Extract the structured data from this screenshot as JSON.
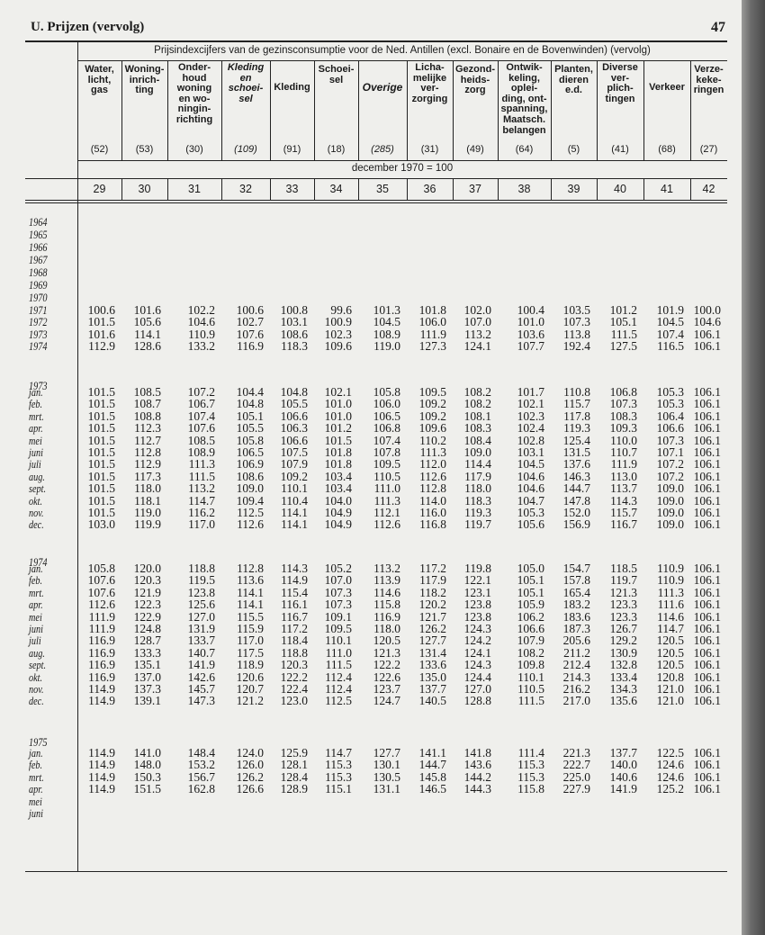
{
  "header": {
    "title": "U. Prijzen (vervolg)",
    "page": "47"
  },
  "table": {
    "caption": "Prijsindexcijfers van de gezinsconsumptie voor de Ned. Antillen (excl. Bonaire en de Bovenwinden) (vervolg)",
    "columns": [
      {
        "label": [
          "Water,",
          "licht,",
          "gas"
        ],
        "weight": "(52)",
        "number": 29
      },
      {
        "label": [
          "Woning-",
          "inrich-",
          "ting"
        ],
        "weight": "(53)",
        "number": 30
      },
      {
        "label": [
          "Onder-",
          "houd",
          "woning",
          "en wo-",
          "ningin-",
          "richting"
        ],
        "weight": "(30)",
        "number": 31
      },
      {
        "label": [
          "Kleding",
          "en",
          "schoei-",
          "sel"
        ],
        "weight": "(109)",
        "number": 32
      },
      {
        "label": [
          "Kleding"
        ],
        "weight": "(91)",
        "number": 33
      },
      {
        "label": [
          "Schoei-",
          "sel"
        ],
        "weight": "(18)",
        "number": 34
      },
      {
        "label": [
          "Overige"
        ],
        "weight": "(285)",
        "number": 35
      },
      {
        "label": [
          "Licha-",
          "melijke",
          "ver-",
          "zorging"
        ],
        "weight": "(31)",
        "number": 36
      },
      {
        "label": [
          "Gezond-",
          "heids-",
          "zorg"
        ],
        "weight": "(49)",
        "number": 37
      },
      {
        "label": [
          "Ontwik-",
          "keling,",
          "oplei-",
          "ding, ont-",
          "spanning,",
          "Maatsch.",
          "belangen"
        ],
        "weight": "(64)",
        "number": 38
      },
      {
        "label": [
          "Planten,",
          "dieren",
          "e.d."
        ],
        "weight": "(5)",
        "number": 39
      },
      {
        "label": [
          "Diverse",
          "ver-",
          "plich-",
          "tingen"
        ],
        "weight": "(41)",
        "number": 40
      },
      {
        "label": [
          "Verkeer"
        ],
        "weight": "(68)",
        "number": 41
      },
      {
        "label": [
          "Verze-",
          "keke-",
          "ringen"
        ],
        "weight": "(27)",
        "number": 42
      }
    ],
    "base": "december 1970 = 100",
    "sections": [
      {
        "rows": [
          {
            "label": "1964"
          },
          {
            "label": "1965"
          },
          {
            "label": "1966"
          },
          {
            "label": "1967"
          },
          {
            "label": "1968"
          },
          {
            "label": "1969"
          },
          {
            "label": "1970"
          },
          {
            "label": "1971",
            "values": [
              "100.6",
              "101.6",
              "102.2",
              "100.6",
              "100.8",
              "99.6",
              "101.3",
              "101.8",
              "102.0",
              "100.4",
              "103.5",
              "101.2",
              "101.9",
              "100.0"
            ]
          },
          {
            "label": "1972",
            "values": [
              "101.5",
              "105.6",
              "104.6",
              "102.7",
              "103.1",
              "100.9",
              "104.5",
              "106.0",
              "107.0",
              "101.0",
              "107.3",
              "105.1",
              "104.5",
              "104.6"
            ]
          },
          {
            "label": "1973",
            "values": [
              "101.6",
              "114.1",
              "110.9",
              "107.6",
              "108.6",
              "102.3",
              "108.9",
              "111.9",
              "113.2",
              "103.6",
              "113.8",
              "111.5",
              "107.4",
              "106.1"
            ]
          },
          {
            "label": "1974",
            "values": [
              "112.9",
              "128.6",
              "133.2",
              "116.9",
              "118.3",
              "109.6",
              "119.0",
              "127.3",
              "124.1",
              "107.7",
              "192.4",
              "127.5",
              "116.5",
              "106.1"
            ]
          }
        ]
      },
      {
        "label": "1973",
        "rows": [
          {
            "label": "jan.",
            "values": [
              "101.5",
              "108.5",
              "107.2",
              "104.4",
              "104.8",
              "102.1",
              "105.8",
              "109.5",
              "108.2",
              "101.7",
              "110.8",
              "106.8",
              "105.3",
              "106.1"
            ]
          },
          {
            "label": "feb.",
            "values": [
              "101.5",
              "108.7",
              "106.7",
              "104.8",
              "105.5",
              "101.0",
              "106.0",
              "109.2",
              "108.2",
              "102.1",
              "115.7",
              "107.3",
              "105.3",
              "106.1"
            ]
          },
          {
            "label": "mrt.",
            "values": [
              "101.5",
              "108.8",
              "107.4",
              "105.1",
              "106.6",
              "101.0",
              "106.5",
              "109.2",
              "108.1",
              "102.3",
              "117.8",
              "108.3",
              "106.4",
              "106.1"
            ]
          },
          {
            "label": "apr.",
            "values": [
              "101.5",
              "112.3",
              "107.6",
              "105.5",
              "106.3",
              "101.2",
              "106.8",
              "109.6",
              "108.3",
              "102.4",
              "119.3",
              "109.3",
              "106.6",
              "106.1"
            ]
          },
          {
            "label": "mei",
            "values": [
              "101.5",
              "112.7",
              "108.5",
              "105.8",
              "106.6",
              "101.5",
              "107.4",
              "110.2",
              "108.4",
              "102.8",
              "125.4",
              "110.0",
              "107.3",
              "106.1"
            ]
          },
          {
            "label": "juni",
            "values": [
              "101.5",
              "112.8",
              "108.9",
              "106.5",
              "107.5",
              "101.8",
              "107.8",
              "111.3",
              "109.0",
              "103.1",
              "131.5",
              "110.7",
              "107.1",
              "106.1"
            ]
          },
          {
            "label": "juli",
            "values": [
              "101.5",
              "112.9",
              "111.3",
              "106.9",
              "107.9",
              "101.8",
              "109.5",
              "112.0",
              "114.4",
              "104.5",
              "137.6",
              "111.9",
              "107.2",
              "106.1"
            ]
          },
          {
            "label": "aug.",
            "values": [
              "101.5",
              "117.3",
              "111.5",
              "108.6",
              "109.2",
              "103.4",
              "110.5",
              "112.6",
              "117.9",
              "104.6",
              "146.3",
              "113.0",
              "107.2",
              "106.1"
            ]
          },
          {
            "label": "sept.",
            "values": [
              "101.5",
              "118.0",
              "113.2",
              "109.0",
              "110.1",
              "103.4",
              "111.0",
              "112.8",
              "118.0",
              "104.6",
              "144.7",
              "113.7",
              "109.0",
              "106.1"
            ]
          },
          {
            "label": "okt.",
            "values": [
              "101.5",
              "118.1",
              "114.7",
              "109.4",
              "110.4",
              "104.0",
              "111.3",
              "114.0",
              "118.3",
              "104.7",
              "147.8",
              "114.3",
              "109.0",
              "106.1"
            ]
          },
          {
            "label": "nov.",
            "values": [
              "101.5",
              "119.0",
              "116.2",
              "112.5",
              "114.1",
              "104.9",
              "112.1",
              "116.0",
              "119.3",
              "105.3",
              "152.0",
              "115.7",
              "109.0",
              "106.1"
            ]
          },
          {
            "label": "dec.",
            "values": [
              "103.0",
              "119.9",
              "117.0",
              "112.6",
              "114.1",
              "104.9",
              "112.6",
              "116.8",
              "119.7",
              "105.6",
              "156.9",
              "116.7",
              "109.0",
              "106.1"
            ]
          }
        ]
      },
      {
        "label": "1974",
        "rows": [
          {
            "label": "jan.",
            "values": [
              "105.8",
              "120.0",
              "118.8",
              "112.8",
              "114.3",
              "105.2",
              "113.2",
              "117.2",
              "119.8",
              "105.0",
              "154.7",
              "118.5",
              "110.9",
              "106.1"
            ]
          },
          {
            "label": "feb.",
            "values": [
              "107.6",
              "120.3",
              "119.5",
              "113.6",
              "114.9",
              "107.0",
              "113.9",
              "117.9",
              "122.1",
              "105.1",
              "157.8",
              "119.7",
              "110.9",
              "106.1"
            ]
          },
          {
            "label": "mrt.",
            "values": [
              "107.6",
              "121.9",
              "123.8",
              "114.1",
              "115.4",
              "107.3",
              "114.6",
              "118.2",
              "123.1",
              "105.1",
              "165.4",
              "121.3",
              "111.3",
              "106.1"
            ]
          },
          {
            "label": "apr.",
            "values": [
              "112.6",
              "122.3",
              "125.6",
              "114.1",
              "116.1",
              "107.3",
              "115.8",
              "120.2",
              "123.8",
              "105.9",
              "183.2",
              "123.3",
              "111.6",
              "106.1"
            ]
          },
          {
            "label": "mei",
            "values": [
              "111.9",
              "122.9",
              "127.0",
              "115.5",
              "116.7",
              "109.1",
              "116.9",
              "121.7",
              "123.8",
              "106.2",
              "183.6",
              "123.3",
              "114.6",
              "106.1"
            ]
          },
          {
            "label": "juni",
            "values": [
              "111.9",
              "124.8",
              "131.9",
              "115.9",
              "117.2",
              "109.5",
              "118.0",
              "126.2",
              "124.3",
              "106.6",
              "187.3",
              "126.7",
              "114.7",
              "106.1"
            ]
          },
          {
            "label": "juli",
            "values": [
              "116.9",
              "128.7",
              "133.7",
              "117.0",
              "118.4",
              "110.1",
              "120.5",
              "127.7",
              "124.2",
              "107.9",
              "205.6",
              "129.2",
              "120.5",
              "106.1"
            ]
          },
          {
            "label": "aug.",
            "values": [
              "116.9",
              "133.3",
              "140.7",
              "117.5",
              "118.8",
              "111.0",
              "121.3",
              "131.4",
              "124.1",
              "108.2",
              "211.2",
              "130.9",
              "120.5",
              "106.1"
            ]
          },
          {
            "label": "sept.",
            "values": [
              "116.9",
              "135.1",
              "141.9",
              "118.9",
              "120.3",
              "111.5",
              "122.2",
              "133.6",
              "124.3",
              "109.8",
              "212.4",
              "132.8",
              "120.5",
              "106.1"
            ]
          },
          {
            "label": "okt.",
            "values": [
              "116.9",
              "137.0",
              "142.6",
              "120.6",
              "122.2",
              "112.4",
              "122.6",
              "135.0",
              "124.4",
              "110.1",
              "214.3",
              "133.4",
              "120.8",
              "106.1"
            ]
          },
          {
            "label": "nov.",
            "values": [
              "114.9",
              "137.3",
              "145.7",
              "120.7",
              "122.4",
              "112.4",
              "123.7",
              "137.7",
              "127.0",
              "110.5",
              "216.2",
              "134.3",
              "121.0",
              "106.1"
            ]
          },
          {
            "label": "dec.",
            "values": [
              "114.9",
              "139.1",
              "147.3",
              "121.2",
              "123.0",
              "112.5",
              "124.7",
              "140.5",
              "128.8",
              "111.5",
              "217.0",
              "135.6",
              "121.0",
              "106.1"
            ]
          }
        ]
      },
      {
        "label": "1975",
        "rows": [
          {
            "label": "jan.",
            "values": [
              "114.9",
              "141.0",
              "148.4",
              "124.0",
              "125.9",
              "114.7",
              "127.7",
              "141.1",
              "141.8",
              "111.4",
              "221.3",
              "137.7",
              "122.5",
              "106.1"
            ]
          },
          {
            "label": "feb.",
            "values": [
              "114.9",
              "148.0",
              "153.2",
              "126.0",
              "128.1",
              "115.3",
              "130.1",
              "144.7",
              "143.6",
              "115.3",
              "222.7",
              "140.0",
              "124.6",
              "106.1"
            ]
          },
          {
            "label": "mrt.",
            "values": [
              "114.9",
              "150.3",
              "156.7",
              "126.2",
              "128.4",
              "115.3",
              "130.5",
              "145.8",
              "144.2",
              "115.3",
              "225.0",
              "140.6",
              "124.6",
              "106.1"
            ]
          },
          {
            "label": "apr.",
            "values": [
              "114.9",
              "151.5",
              "162.8",
              "126.6",
              "128.9",
              "115.1",
              "131.1",
              "146.5",
              "144.3",
              "115.8",
              "227.9",
              "141.9",
              "125.2",
              "106.1"
            ]
          },
          {
            "label": "mei"
          },
          {
            "label": "juni"
          }
        ]
      }
    ]
  }
}
